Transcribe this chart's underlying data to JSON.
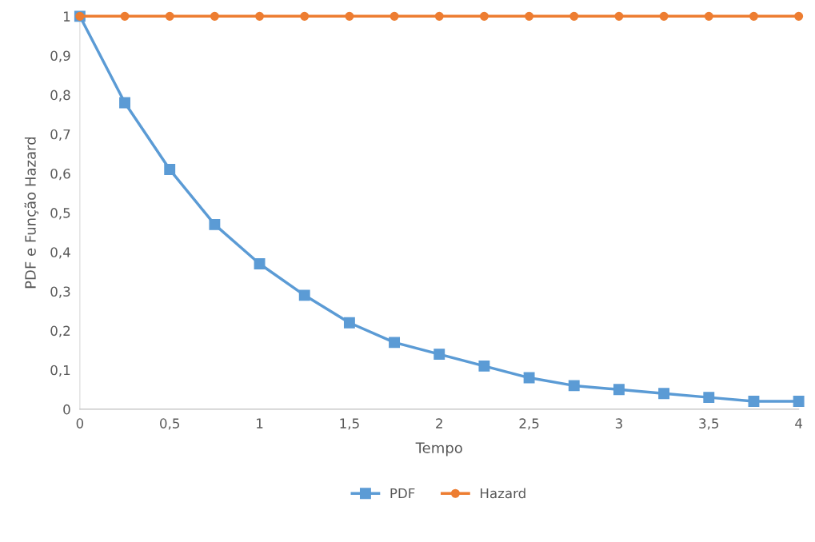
{
  "chart_data": {
    "type": "line",
    "xlabel": "Tempo",
    "ylabel": "PDF e Função Hazard",
    "x": [
      0,
      0.25,
      0.5,
      0.75,
      1,
      1.25,
      1.5,
      1.75,
      2,
      2.25,
      2.5,
      2.75,
      3,
      3.25,
      3.5,
      3.75,
      4
    ],
    "series": [
      {
        "name": "PDF",
        "color": "#5b9bd5",
        "marker": "square",
        "values": [
          1,
          0.78,
          0.61,
          0.47,
          0.37,
          0.29,
          0.22,
          0.17,
          0.14,
          0.11,
          0.08,
          0.06,
          0.05,
          0.04,
          0.03,
          0.02,
          0.02
        ]
      },
      {
        "name": "Hazard",
        "color": "#ed7d31",
        "marker": "circle",
        "values": [
          1,
          1,
          1,
          1,
          1,
          1,
          1,
          1,
          1,
          1,
          1,
          1,
          1,
          1,
          1,
          1,
          1
        ]
      }
    ],
    "xlim": [
      0,
      4
    ],
    "xticks": [
      {
        "value": 0,
        "label": "0"
      },
      {
        "value": 0.5,
        "label": "0,5"
      },
      {
        "value": 1,
        "label": "1"
      },
      {
        "value": 1.5,
        "label": "1,5"
      },
      {
        "value": 2,
        "label": "2"
      },
      {
        "value": 2.5,
        "label": "2,5"
      },
      {
        "value": 3,
        "label": "3"
      },
      {
        "value": 3.5,
        "label": "3,5"
      },
      {
        "value": 4,
        "label": "4"
      }
    ],
    "ylim": [
      0,
      1
    ],
    "yticks": [
      {
        "value": 0,
        "label": "0"
      },
      {
        "value": 0.1,
        "label": "0,1"
      },
      {
        "value": 0.2,
        "label": "0,2"
      },
      {
        "value": 0.3,
        "label": "0,3"
      },
      {
        "value": 0.4,
        "label": "0,4"
      },
      {
        "value": 0.5,
        "label": "0,5"
      },
      {
        "value": 0.6,
        "label": "0,6"
      },
      {
        "value": 0.7,
        "label": "0,7"
      },
      {
        "value": 0.8,
        "label": "0,8"
      },
      {
        "value": 0.9,
        "label": "0,9"
      },
      {
        "value": 1,
        "label": "1"
      }
    ],
    "grid": false,
    "legend": "bottom",
    "line_style": "solid"
  }
}
